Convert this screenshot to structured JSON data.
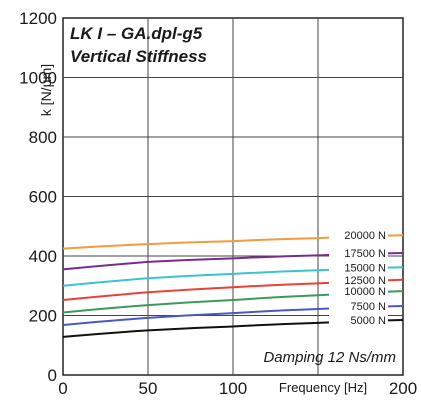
{
  "chart_data": {
    "type": "line",
    "title": "LK I – GA.dpl-g5",
    "subtitle": "Vertical Stiffness",
    "xlabel": "Frequency [Hz]",
    "ylabel": "k [N/µm]",
    "xlim": [
      0,
      200
    ],
    "ylim": [
      0,
      1200
    ],
    "x_ticks": [
      "0",
      "50",
      "100",
      "200"
    ],
    "x_tick_values": [
      0,
      50,
      100,
      200
    ],
    "y_ticks": [
      "0",
      "200",
      "400",
      "600",
      "800",
      "1000",
      "1200"
    ],
    "y_tick_values": [
      0,
      200,
      400,
      600,
      800,
      1000,
      1200
    ],
    "grid": true,
    "annotation": "Damping 12 Ns/mm",
    "legend_placement": "inline-right",
    "x": [
      0,
      50,
      100,
      150,
      200
    ],
    "series": [
      {
        "name": "20000 N",
        "color": "#f59a3c",
        "values": [
          425,
          440,
          450,
          460,
          470
        ]
      },
      {
        "name": "17500 N",
        "color": "#7a2c8c",
        "values": [
          355,
          380,
          392,
          402,
          410
        ]
      },
      {
        "name": "15000 N",
        "color": "#3cc4cc",
        "values": [
          300,
          325,
          340,
          352,
          362
        ]
      },
      {
        "name": "12500 N",
        "color": "#e8403a",
        "values": [
          252,
          278,
          295,
          308,
          320
        ]
      },
      {
        "name": "10000 N",
        "color": "#3c9a58",
        "values": [
          210,
          235,
          252,
          268,
          282
        ]
      },
      {
        "name": "7500 N",
        "color": "#4a58c0",
        "values": [
          168,
          192,
          208,
          222,
          232
        ]
      },
      {
        "name": "5000 N",
        "color": "#111111",
        "values": [
          128,
          150,
          163,
          175,
          185
        ]
      }
    ]
  }
}
